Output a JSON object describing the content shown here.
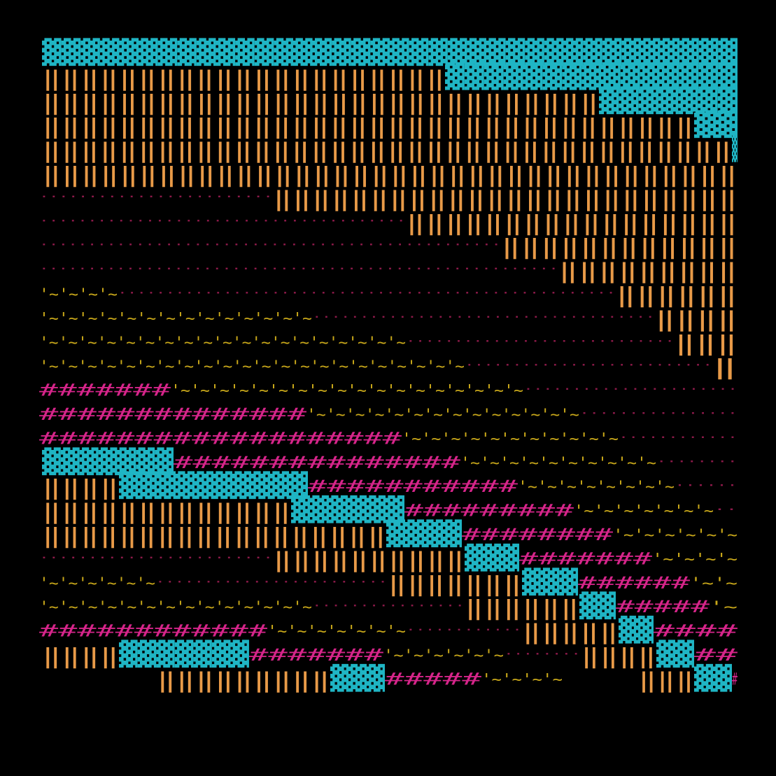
{
  "palette": {
    "background": "#000000",
    "block": "#1fb5c4",
    "pipe": "#e89a48",
    "tilde": "#c9a81a",
    "hash": "#d6258a",
    "dot": "#8e1a4a"
  },
  "glyphs": {
    "block": "▓",
    "pipe": "‖",
    "tilde": "'~",
    "hash": "#",
    "dot": "··"
  },
  "bands": [
    "pipe-over-block staircase (top right)",
    "dot / tilde / hash diagonal stripes",
    "second block staircase (lower left)"
  ]
}
